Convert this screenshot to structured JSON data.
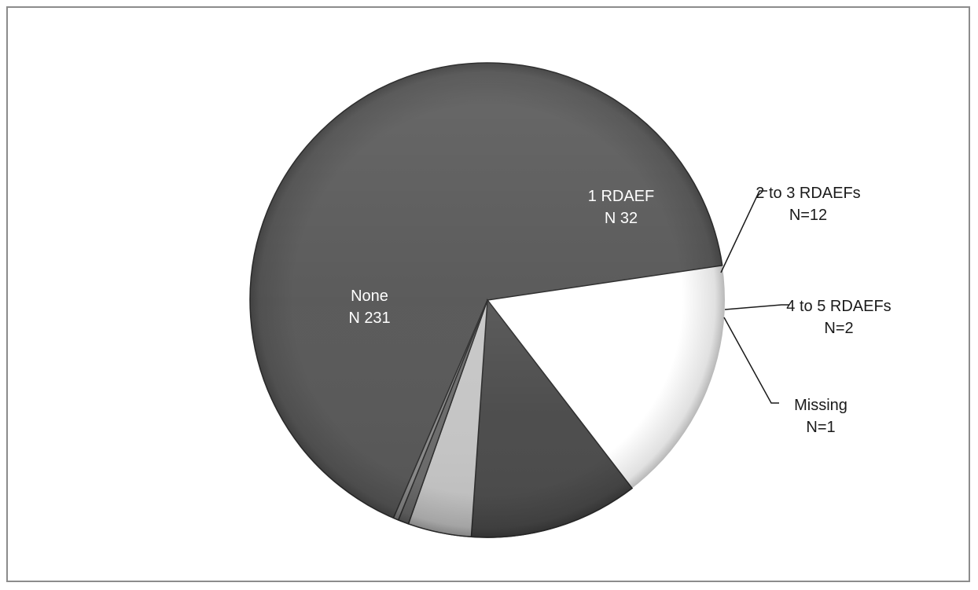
{
  "chart_data": {
    "type": "pie",
    "title": "",
    "slices": [
      {
        "label": "None",
        "count_text": "N  231",
        "value": 231,
        "color": "#585858",
        "label_color": "#ffffff",
        "label_placement": "inside"
      },
      {
        "label": "1 RDAEF",
        "count_text": "N  32",
        "value": 32,
        "color": "#4a4a4a",
        "label_color": "#ffffff",
        "label_placement": "inside"
      },
      {
        "label": "2 to 3 RDAEFs",
        "count_text": "N=12",
        "value": 12,
        "color": "#c4c4c4",
        "label_color": "#1a1a1a",
        "label_placement": "outside"
      },
      {
        "label": "4 to 5 RDAEFs",
        "count_text": "N=2",
        "value": 2,
        "color": "#6a6a6a",
        "label_color": "#1a1a1a",
        "label_placement": "outside"
      },
      {
        "label": "Missing",
        "count_text": "N=1",
        "value": 1,
        "color": "#8a8a8a",
        "label_color": "#1a1a1a",
        "label_placement": "outside"
      }
    ],
    "legend": "none"
  }
}
